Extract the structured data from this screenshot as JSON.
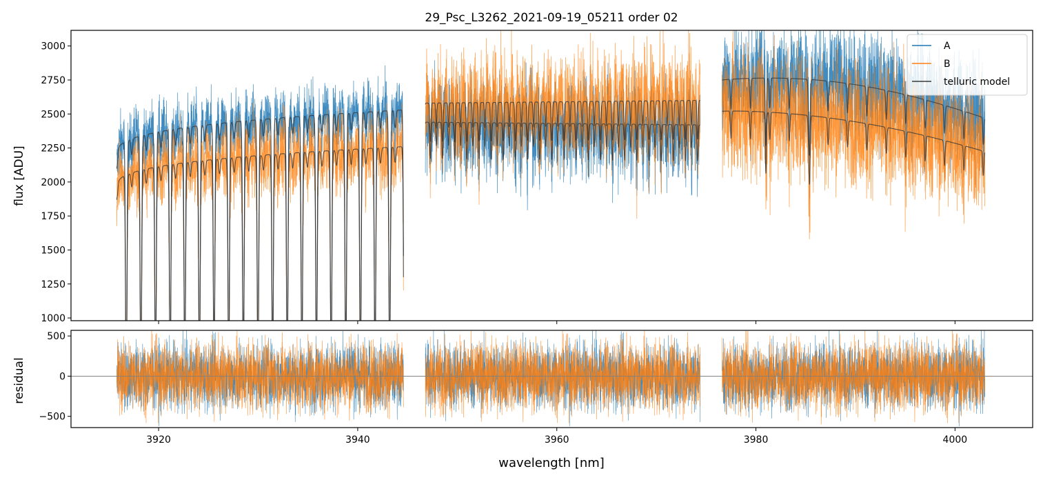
{
  "figure": {
    "title": "29_Psc_L3262_2021-09-19_05211  order 02"
  },
  "colors": {
    "A": "#1f77b4",
    "B": "#ff7f0e",
    "model": "#3a3a3a",
    "zero": "#808080"
  },
  "chart_data": [
    {
      "type": "line",
      "panel": "spectrum",
      "title": "29_Psc_L3262_2021-09-19_05211  order 02",
      "xlabel": "",
      "ylabel": "flux [ADU]",
      "xlim": [
        3911.2,
        4007.8
      ],
      "ylim": [
        980,
        3115
      ],
      "xticks": [
        3920,
        3940,
        3960,
        3980,
        4000
      ],
      "xtick_labels": [
        "",
        "",
        "",
        "",
        ""
      ],
      "yticks": [
        1000,
        1250,
        1500,
        1750,
        2000,
        2250,
        2500,
        2750,
        3000
      ],
      "ytick_labels": [
        "1000",
        "1250",
        "1500",
        "1750",
        "2000",
        "2250",
        "2500",
        "2750",
        "3000"
      ],
      "legend": {
        "location": "top-right",
        "entries": [
          "A",
          "B",
          "telluric model"
        ]
      },
      "segments": [
        {
          "x_range": [
            3915.8,
            3944.6
          ],
          "continuum_A": [
            2200,
            2530
          ],
          "continuum_B": [
            1960,
            2260
          ],
          "noise": 120
        },
        {
          "x_range": [
            3946.8,
            3974.4
          ],
          "continuum_A": [
            2440,
            2420
          ],
          "continuum_B": [
            2580,
            2600
          ],
          "noise": 170
        },
        {
          "x_range": [
            3976.6,
            4003.0
          ],
          "continuum_A": [
            2750,
            2470
          ],
          "continuum_B": [
            2520,
            2200
          ],
          "noise": 200
        }
      ],
      "series": [
        {
          "name": "A",
          "description": "observed spectrum, nod position A"
        },
        {
          "name": "B",
          "description": "observed spectrum, nod position B"
        },
        {
          "name": "telluric model",
          "description": "best-fit telluric absorption model (one curve per nod position)"
        }
      ]
    },
    {
      "type": "line",
      "panel": "residual",
      "xlabel": "wavelength [nm]",
      "ylabel": "residual",
      "xlim": [
        3911.2,
        4007.8
      ],
      "ylim": [
        -640,
        570
      ],
      "xticks": [
        3920,
        3940,
        3960,
        3980,
        4000
      ],
      "xtick_labels": [
        "3920",
        "3940",
        "3960",
        "3980",
        "4000"
      ],
      "yticks": [
        -500,
        0,
        500
      ],
      "ytick_labels": [
        "−500",
        "0",
        "500"
      ],
      "zero_line": 0,
      "noise_std": 210,
      "series": [
        {
          "name": "A",
          "description": "residual A - model"
        },
        {
          "name": "B",
          "description": "residual B - model"
        }
      ]
    }
  ]
}
